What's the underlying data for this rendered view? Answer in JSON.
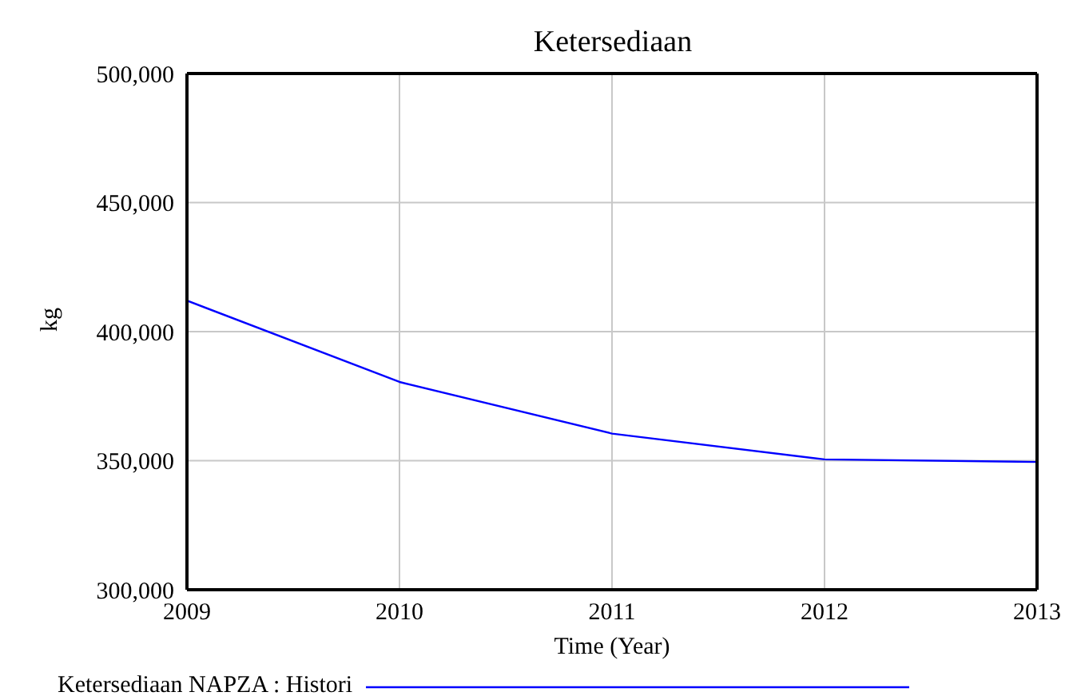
{
  "chart_data": {
    "type": "line",
    "title": "Ketersediaan",
    "xlabel": "Time (Year)",
    "ylabel": "kg",
    "x": [
      2009,
      2010,
      2011,
      2012,
      2013
    ],
    "series": [
      {
        "name": "Ketersediaan NAPZA : Histori",
        "color": "#0000ff",
        "values": [
          412000,
          380500,
          360500,
          350500,
          349500
        ]
      }
    ],
    "xlim": [
      2009,
      2013
    ],
    "xticks": [
      2009,
      2010,
      2011,
      2012,
      2013
    ],
    "ylim": [
      300000,
      500000
    ],
    "yticks": [
      {
        "value": 300000,
        "label": "300,000"
      },
      {
        "value": 350000,
        "label": "350,000"
      },
      {
        "value": 400000,
        "label": "400,000"
      },
      {
        "value": 450000,
        "label": "450,000"
      },
      {
        "value": 500000,
        "label": "500,000"
      }
    ],
    "grid": true,
    "legend": "bottom"
  }
}
